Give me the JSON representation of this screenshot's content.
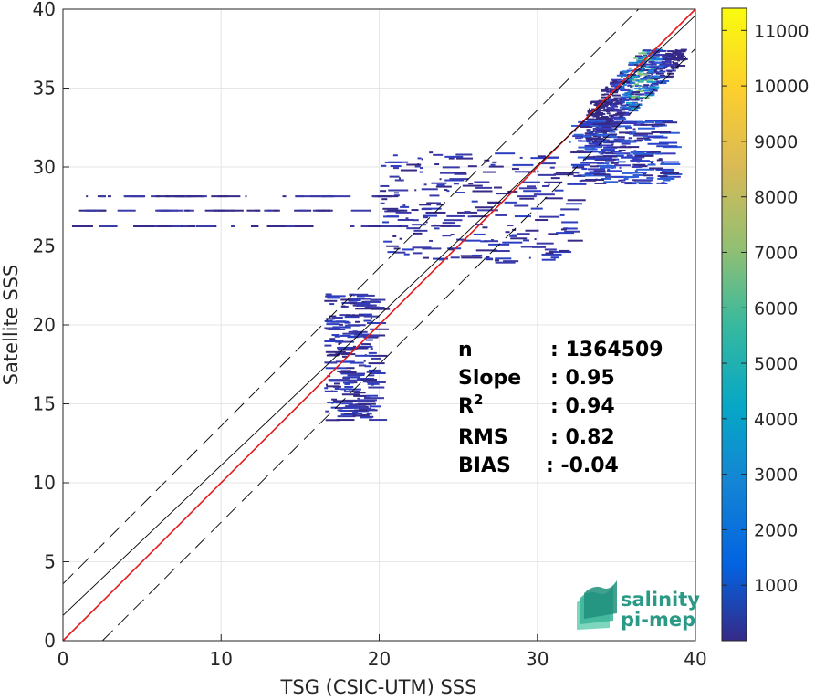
{
  "chart_data": {
    "type": "heatmap",
    "title": "",
    "xlabel": "TSG (CSIC-UTM) SSS",
    "ylabel": "Satellite SSS",
    "xlim": [
      0,
      40
    ],
    "ylim": [
      0,
      40
    ],
    "x_ticks": [
      "0",
      "10",
      "20",
      "30",
      "40"
    ],
    "y_ticks": [
      "0",
      "5",
      "10",
      "15",
      "20",
      "25",
      "30",
      "35",
      "40"
    ],
    "grid": true,
    "colorbar": {
      "min": 0,
      "max": 11400,
      "ticks": [
        "1000",
        "2000",
        "3000",
        "4000",
        "5000",
        "6000",
        "7000",
        "8000",
        "9000",
        "10000",
        "11000"
      ],
      "colormap": "parula"
    },
    "lines": [
      {
        "kind": "identity",
        "slope": 1.0,
        "intercept": 0.0,
        "color": "#e41a1c"
      },
      {
        "kind": "fit",
        "slope": 0.95,
        "intercept": 1.6,
        "color": "#000000"
      },
      {
        "kind": "upper-bound",
        "slope": 1.0,
        "intercept": 3.6,
        "color": "#000000",
        "dashed": true
      },
      {
        "kind": "lower-bound",
        "slope": 1.0,
        "intercept": -2.5,
        "color": "#000000",
        "dashed": true
      }
    ],
    "density_clusters": [
      {
        "x": [
          33,
          39.2
        ],
        "y": [
          31.5,
          37.5
        ],
        "density": "high"
      },
      {
        "x": [
          32,
          38
        ],
        "y": [
          29,
          33
        ],
        "density": "medium"
      },
      {
        "x": [
          20,
          32
        ],
        "y": [
          24,
          31
        ],
        "density": "low"
      },
      {
        "x": [
          16.5,
          19.5
        ],
        "y": [
          14,
          22
        ],
        "density": "low"
      },
      {
        "x": [
          0.5,
          21
        ],
        "y": [
          26,
          28.5
        ],
        "density": "sparse"
      }
    ],
    "stats": [
      {
        "label": "n",
        "value": ": 1364509"
      },
      {
        "label": "Slope",
        "value": ": 0.95"
      },
      {
        "label": "R",
        "sup": "2",
        "value": ": 0.94"
      },
      {
        "label": "RMS",
        "value": ": 0.82"
      },
      {
        "label": "BIAS",
        "value": ": -0.04"
      }
    ]
  },
  "logo": {
    "line1": "salinity",
    "line2": "pi-mep",
    "color": "#2a9a86"
  }
}
